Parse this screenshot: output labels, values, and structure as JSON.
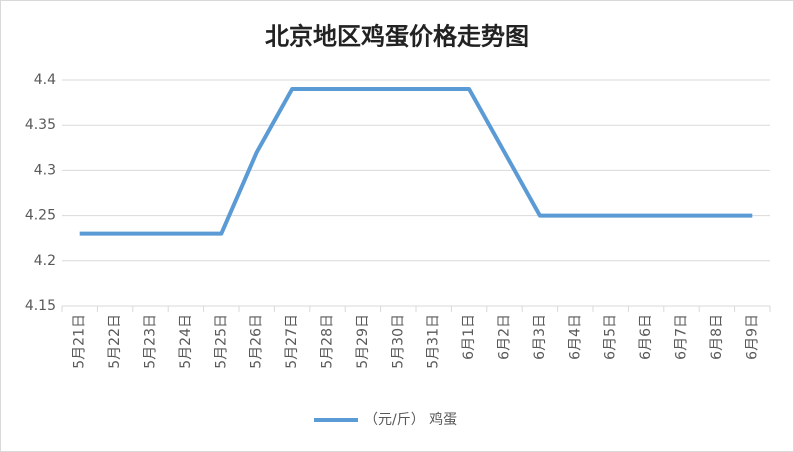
{
  "chart_data": {
    "type": "line",
    "title": "北京地区鸡蛋价格走势图",
    "categories": [
      "5月21日",
      "5月22日",
      "5月23日",
      "5月24日",
      "5月25日",
      "5月26日",
      "5月27日",
      "5月28日",
      "5月29日",
      "5月30日",
      "5月31日",
      "6月1日",
      "6月2日",
      "6月3日",
      "6月4日",
      "6月5日",
      "6月6日",
      "6月7日",
      "6月8日",
      "6月9日"
    ],
    "series": [
      {
        "name": "（元/斤） 鸡蛋",
        "color": "#5b9bd5",
        "values": [
          4.23,
          4.23,
          4.23,
          4.23,
          4.23,
          4.32,
          4.39,
          4.39,
          4.39,
          4.39,
          4.39,
          4.39,
          4.32,
          4.25,
          4.25,
          4.25,
          4.25,
          4.25,
          4.25,
          4.25
        ]
      }
    ],
    "ylim": [
      4.15,
      4.4
    ],
    "yticks": [
      4.15,
      4.2,
      4.25,
      4.3,
      4.35,
      4.4
    ],
    "grid": true,
    "legend": "bottom"
  }
}
